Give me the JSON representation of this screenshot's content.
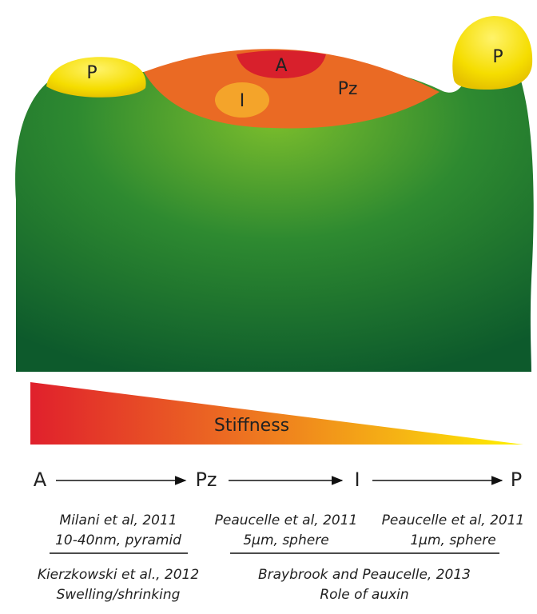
{
  "labels": {
    "primordium_left": "P",
    "primordium_right": "P",
    "apex": "A",
    "peripheral_zone": "Pz",
    "incipient": "I"
  },
  "stiffness_label": "Stiffness",
  "sequence": [
    "A",
    "Pz",
    "I",
    "P"
  ],
  "references_top": [
    {
      "citation": "Milani et al, 2011",
      "detail": "10-40nm, pyramid"
    },
    {
      "citation": "Peaucelle et al, 2011",
      "detail": "5µm, sphere"
    },
    {
      "citation": "Peaucelle et al, 2011",
      "detail": "1µm, sphere"
    }
  ],
  "references_bottom": [
    {
      "citation": "Kierzkowski et al., 2012",
      "detail": "Swelling/shrinking"
    },
    {
      "citation": "Braybrook and Peaucelle, 2013",
      "detail": "Role of auxin"
    }
  ]
}
